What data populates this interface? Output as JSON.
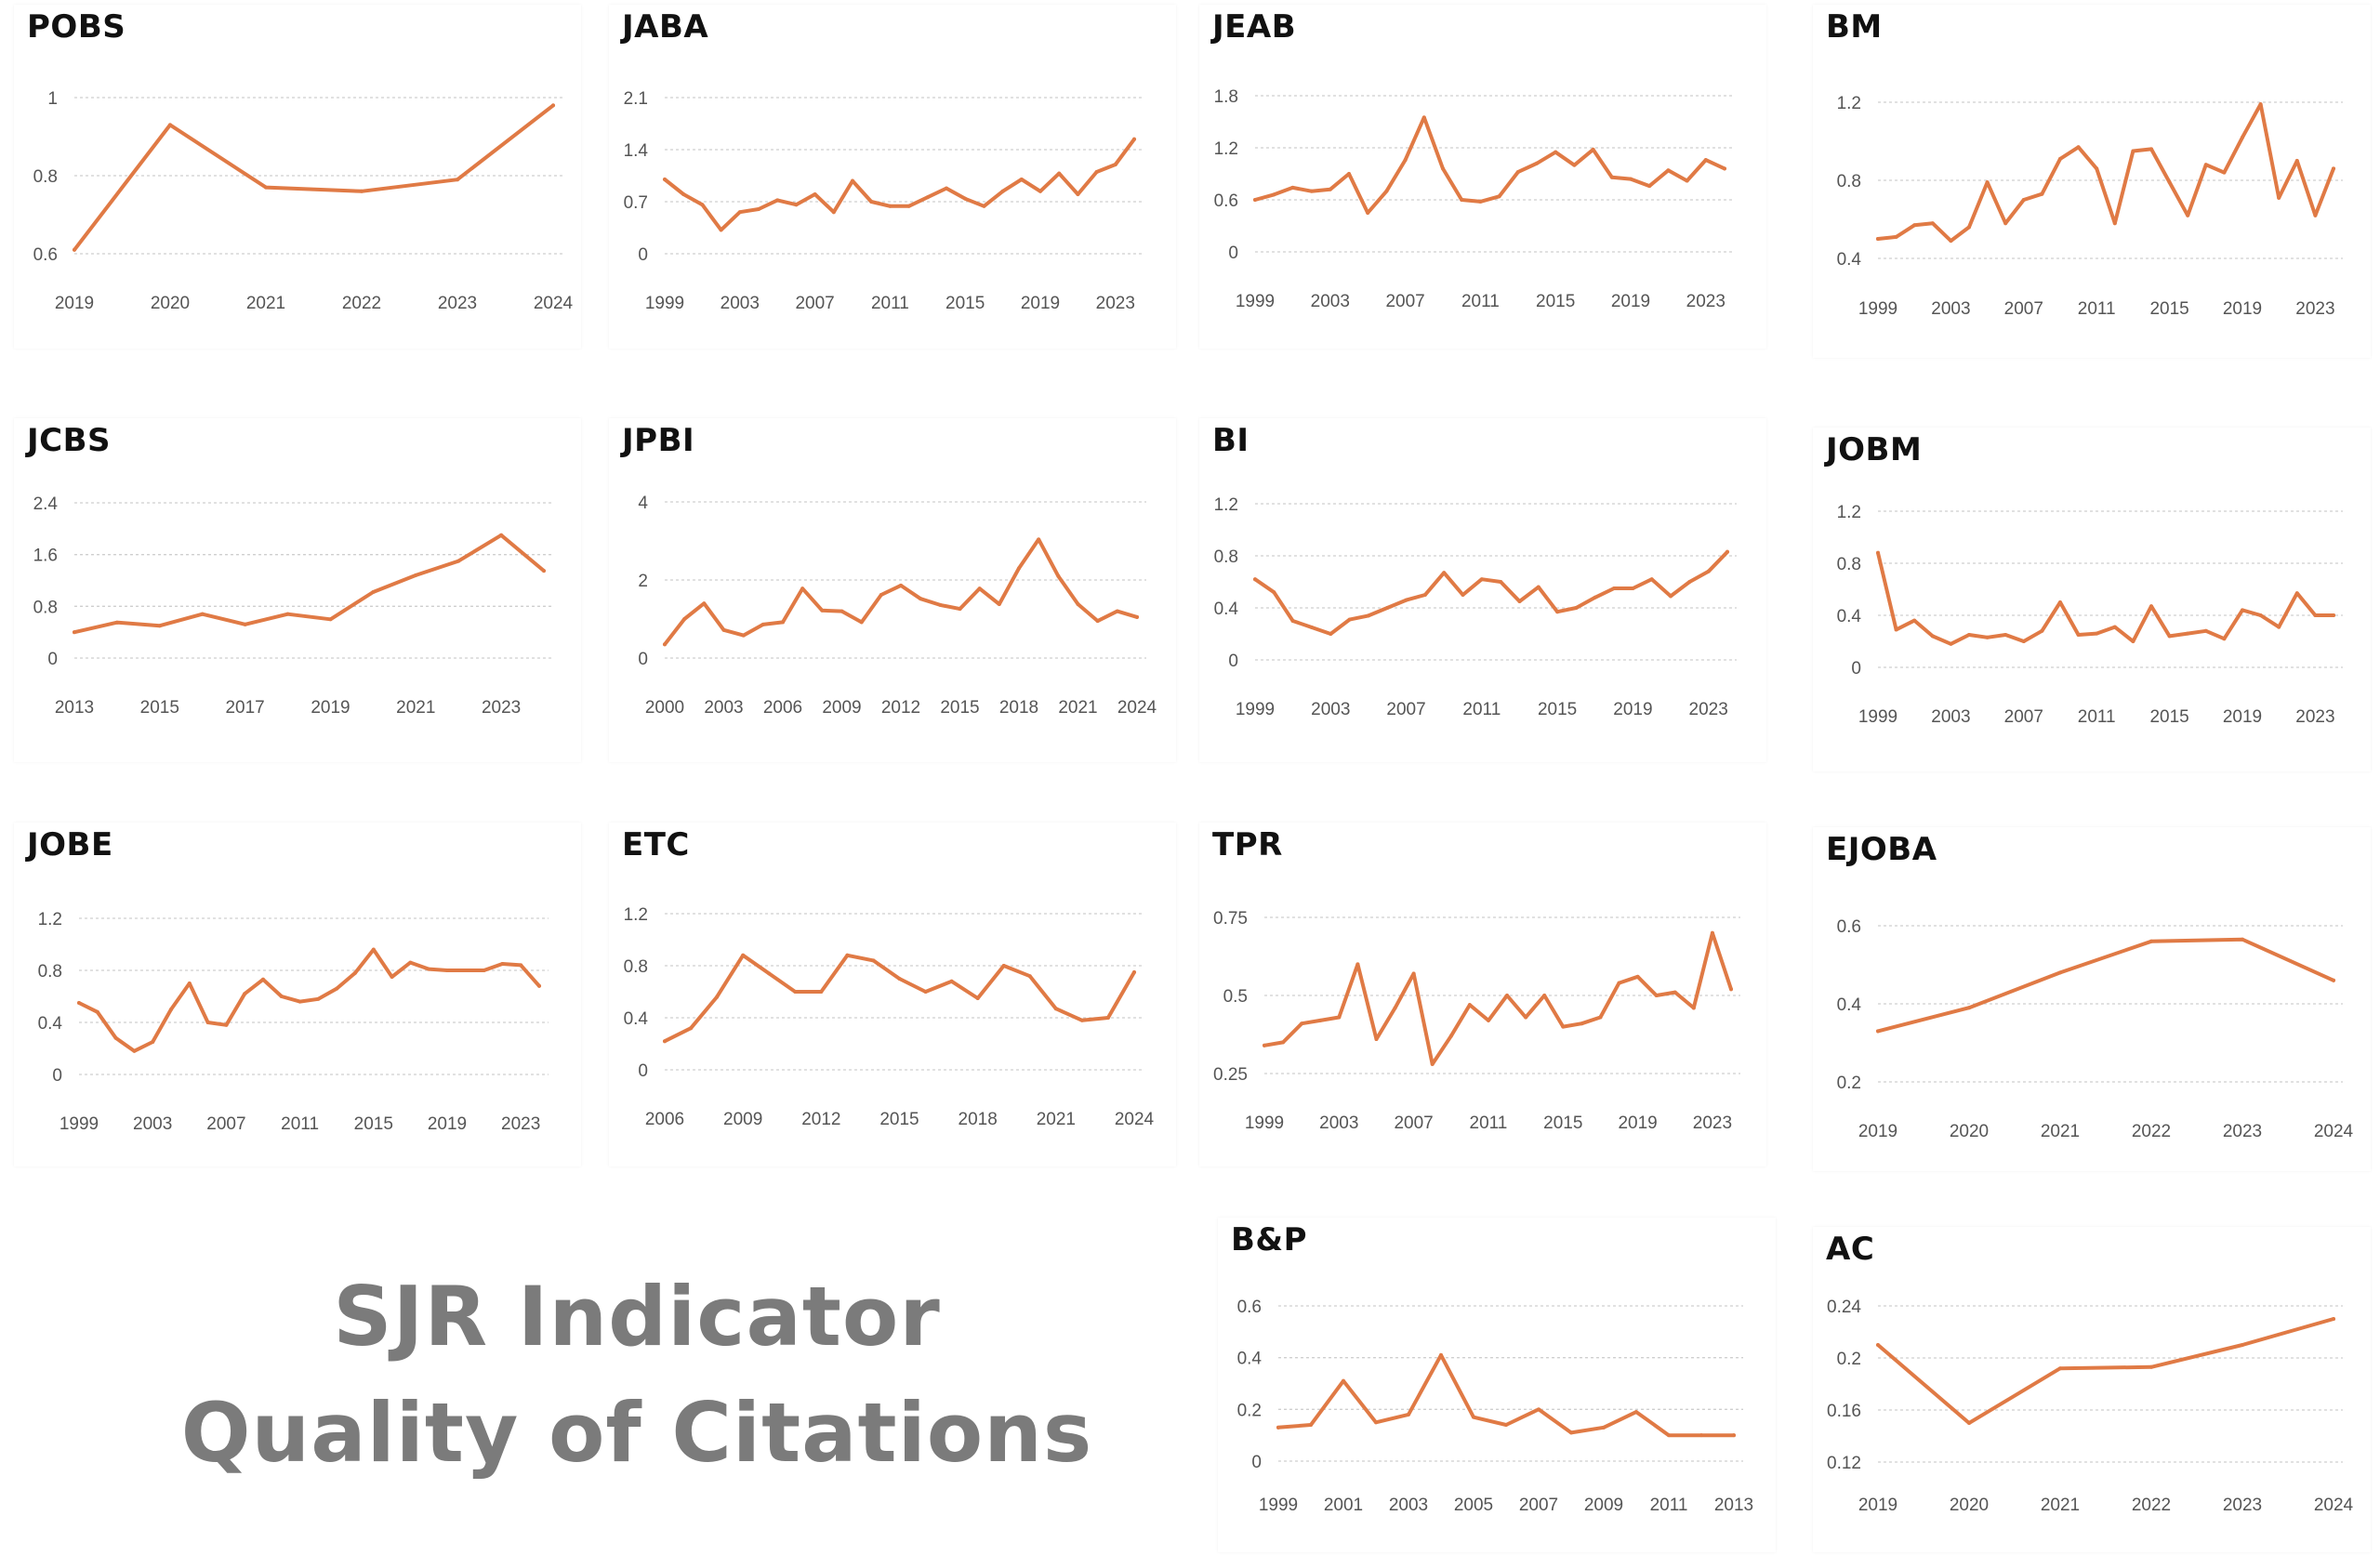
{
  "header": {
    "line1": "SJR Indicator",
    "line2": "Quality of Citations"
  },
  "style": {
    "line_color": "#e07a45",
    "title_color": "#7b7b7b"
  },
  "chart_data": [
    {
      "type": "line",
      "title": "POBS",
      "y_ticks": [
        "0.6",
        "0.8",
        "1"
      ],
      "ylim": [
        0.6,
        1.0
      ],
      "x_ticks": [
        "2019",
        "2020",
        "2021",
        "2022",
        "2023",
        "2024"
      ],
      "x": [
        2019,
        2020,
        2021,
        2022,
        2023,
        2024
      ],
      "values": [
        0.61,
        0.93,
        0.77,
        0.76,
        0.79,
        0.98
      ]
    },
    {
      "type": "line",
      "title": "JABA",
      "y_ticks": [
        "0",
        "0.7",
        "1.4",
        "2.1"
      ],
      "ylim": [
        0,
        2.1
      ],
      "x_ticks": [
        "1999",
        "2003",
        "2007",
        "2011",
        "2015",
        "2019",
        "2023"
      ],
      "x": [
        1999,
        2000,
        2001,
        2002,
        2003,
        2004,
        2005,
        2006,
        2007,
        2008,
        2009,
        2010,
        2011,
        2012,
        2013,
        2014,
        2015,
        2016,
        2017,
        2018,
        2019,
        2020,
        2021,
        2022,
        2023,
        2024
      ],
      "values": [
        1.0,
        0.8,
        0.66,
        0.32,
        0.56,
        0.6,
        0.72,
        0.66,
        0.8,
        0.56,
        0.98,
        0.7,
        0.64,
        0.64,
        0.76,
        0.88,
        0.74,
        0.64,
        0.84,
        1.0,
        0.84,
        1.08,
        0.8,
        1.1,
        1.2,
        1.54
      ]
    },
    {
      "type": "line",
      "title": "JEAB",
      "y_ticks": [
        "0",
        "0.6",
        "1.2",
        "1.8"
      ],
      "ylim": [
        0,
        1.8
      ],
      "x_ticks": [
        "1999",
        "2003",
        "2007",
        "2011",
        "2015",
        "2019",
        "2023"
      ],
      "x": [
        1999,
        2000,
        2001,
        2002,
        2003,
        2004,
        2005,
        2006,
        2007,
        2008,
        2009,
        2010,
        2011,
        2012,
        2013,
        2014,
        2015,
        2016,
        2017,
        2018,
        2019,
        2020,
        2021,
        2022,
        2023,
        2024
      ],
      "values": [
        0.6,
        0.66,
        0.74,
        0.7,
        0.72,
        0.9,
        0.45,
        0.7,
        1.06,
        1.55,
        0.96,
        0.6,
        0.58,
        0.64,
        0.92,
        1.02,
        1.15,
        1.0,
        1.18,
        0.86,
        0.84,
        0.76,
        0.94,
        0.82,
        1.06,
        0.96
      ]
    },
    {
      "type": "line",
      "title": "BM",
      "y_ticks": [
        "0.4",
        "0.8",
        "1.2"
      ],
      "ylim": [
        0.4,
        1.2
      ],
      "x_ticks": [
        "1999",
        "2003",
        "2007",
        "2011",
        "2015",
        "2019",
        "2023"
      ],
      "x": [
        1999,
        2000,
        2001,
        2002,
        2003,
        2004,
        2005,
        2006,
        2007,
        2008,
        2009,
        2010,
        2011,
        2012,
        2013,
        2014,
        2015,
        2016,
        2017,
        2018,
        2019,
        2020,
        2021,
        2022,
        2023,
        2024
      ],
      "values": [
        0.5,
        0.51,
        0.57,
        0.58,
        0.49,
        0.56,
        0.79,
        0.58,
        0.7,
        0.73,
        0.91,
        0.97,
        0.86,
        0.58,
        0.95,
        0.96,
        0.79,
        0.62,
        0.88,
        0.84,
        1.02,
        1.19,
        0.71,
        0.9,
        0.62,
        0.86
      ]
    },
    {
      "type": "line",
      "title": "JCBS",
      "y_ticks": [
        "0",
        "0.8",
        "1.6",
        "2.4"
      ],
      "ylim": [
        0,
        2.4
      ],
      "x_ticks": [
        "2013",
        "2015",
        "2017",
        "2019",
        "2021",
        "2023"
      ],
      "x": [
        2013,
        2014,
        2015,
        2016,
        2017,
        2018,
        2019,
        2020,
        2021,
        2022,
        2023,
        2024
      ],
      "values": [
        0.4,
        0.55,
        0.5,
        0.68,
        0.52,
        0.68,
        0.6,
        1.02,
        1.28,
        1.5,
        1.9,
        1.35
      ]
    },
    {
      "type": "line",
      "title": "JPBI",
      "y_ticks": [
        "0",
        "2",
        "4"
      ],
      "ylim": [
        0,
        4
      ],
      "x_ticks": [
        "2000",
        "2003",
        "2006",
        "2009",
        "2012",
        "2015",
        "2018",
        "2021",
        "2024"
      ],
      "x": [
        2000,
        2001,
        2002,
        2003,
        2004,
        2005,
        2006,
        2007,
        2008,
        2009,
        2010,
        2011,
        2012,
        2013,
        2014,
        2015,
        2016,
        2017,
        2018,
        2019,
        2020,
        2021,
        2022,
        2023,
        2024
      ],
      "values": [
        0.35,
        1.0,
        1.4,
        0.72,
        0.58,
        0.86,
        0.92,
        1.78,
        1.22,
        1.2,
        0.92,
        1.62,
        1.86,
        1.52,
        1.36,
        1.26,
        1.78,
        1.38,
        2.3,
        3.04,
        2.1,
        1.38,
        0.95,
        1.2,
        1.05
      ]
    },
    {
      "type": "line",
      "title": "BI",
      "y_ticks": [
        "0",
        "0.4",
        "0.8",
        "1.2"
      ],
      "ylim": [
        0,
        1.2
      ],
      "x_ticks": [
        "1999",
        "2003",
        "2007",
        "2011",
        "2015",
        "2019",
        "2023"
      ],
      "x": [
        1999,
        2000,
        2001,
        2002,
        2003,
        2004,
        2005,
        2006,
        2007,
        2008,
        2009,
        2010,
        2011,
        2012,
        2013,
        2014,
        2015,
        2016,
        2017,
        2018,
        2019,
        2020,
        2021,
        2022,
        2023,
        2024
      ],
      "values": [
        0.62,
        0.52,
        0.3,
        0.25,
        0.2,
        0.31,
        0.34,
        0.4,
        0.46,
        0.5,
        0.67,
        0.5,
        0.62,
        0.6,
        0.45,
        0.56,
        0.37,
        0.4,
        0.48,
        0.55,
        0.55,
        0.62,
        0.49,
        0.6,
        0.68,
        0.83
      ]
    },
    {
      "type": "line",
      "title": "JOBM",
      "y_ticks": [
        "0",
        "0.4",
        "0.8",
        "1.2"
      ],
      "ylim": [
        0,
        1.2
      ],
      "x_ticks": [
        "1999",
        "2003",
        "2007",
        "2011",
        "2015",
        "2019",
        "2023"
      ],
      "x": [
        1999,
        2000,
        2001,
        2002,
        2003,
        2004,
        2005,
        2006,
        2007,
        2008,
        2009,
        2010,
        2011,
        2012,
        2013,
        2014,
        2015,
        2016,
        2017,
        2018,
        2019,
        2020,
        2021,
        2022,
        2023,
        2024
      ],
      "values": [
        0.88,
        0.29,
        0.36,
        0.24,
        0.18,
        0.25,
        0.23,
        0.25,
        0.2,
        0.28,
        0.5,
        0.25,
        0.26,
        0.31,
        0.2,
        0.47,
        0.24,
        0.26,
        0.28,
        0.22,
        0.44,
        0.4,
        0.31,
        0.57,
        0.4,
        0.4
      ]
    },
    {
      "type": "line",
      "title": "JOBE",
      "y_ticks": [
        "0",
        "0.4",
        "0.8",
        "1.2"
      ],
      "ylim": [
        0,
        1.2
      ],
      "x_ticks": [
        "1999",
        "2003",
        "2007",
        "2011",
        "2015",
        "2019",
        "2023"
      ],
      "x": [
        1999,
        2000,
        2001,
        2002,
        2003,
        2004,
        2005,
        2006,
        2007,
        2008,
        2009,
        2010,
        2011,
        2012,
        2013,
        2014,
        2015,
        2016,
        2017,
        2018,
        2019,
        2020,
        2021,
        2022,
        2023,
        2024
      ],
      "values": [
        0.55,
        0.48,
        0.28,
        0.18,
        0.25,
        0.5,
        0.7,
        0.4,
        0.38,
        0.62,
        0.73,
        0.6,
        0.56,
        0.58,
        0.66,
        0.78,
        0.96,
        0.75,
        0.86,
        0.81,
        0.8,
        0.8,
        0.8,
        0.85,
        0.84,
        0.68
      ]
    },
    {
      "type": "line",
      "title": "ETC",
      "y_ticks": [
        "0",
        "0.4",
        "0.8",
        "1.2"
      ],
      "ylim": [
        0,
        1.2
      ],
      "x_ticks": [
        "2006",
        "2009",
        "2012",
        "2015",
        "2018",
        "2021",
        "2024"
      ],
      "x": [
        2006,
        2007,
        2008,
        2009,
        2010,
        2011,
        2012,
        2013,
        2014,
        2015,
        2016,
        2017,
        2018,
        2019,
        2020,
        2021,
        2022,
        2023,
        2024
      ],
      "values": [
        0.22,
        0.32,
        0.56,
        0.88,
        0.74,
        0.6,
        0.6,
        0.88,
        0.84,
        0.7,
        0.6,
        0.68,
        0.55,
        0.8,
        0.72,
        0.47,
        0.38,
        0.4,
        0.75
      ]
    },
    {
      "type": "line",
      "title": "TPR",
      "y_ticks": [
        "0.25",
        "0.5",
        "0.75"
      ],
      "ylim": [
        0.25,
        0.75
      ],
      "x_ticks": [
        "1999",
        "2003",
        "2007",
        "2011",
        "2015",
        "2019",
        "2023"
      ],
      "x": [
        1999,
        2000,
        2001,
        2002,
        2003,
        2004,
        2005,
        2006,
        2007,
        2008,
        2009,
        2010,
        2011,
        2012,
        2013,
        2014,
        2015,
        2016,
        2017,
        2018,
        2019,
        2020,
        2021,
        2022,
        2023,
        2024
      ],
      "values": [
        0.34,
        0.35,
        0.41,
        0.42,
        0.43,
        0.6,
        0.36,
        0.46,
        0.57,
        0.28,
        0.37,
        0.47,
        0.42,
        0.5,
        0.43,
        0.5,
        0.4,
        0.41,
        0.43,
        0.54,
        0.56,
        0.5,
        0.51,
        0.46,
        0.7,
        0.52
      ]
    },
    {
      "type": "line",
      "title": "EJOBA",
      "y_ticks": [
        "0.2",
        "0.4",
        "0.6"
      ],
      "ylim": [
        0.2,
        0.6
      ],
      "x_ticks": [
        "2019",
        "2020",
        "2021",
        "2022",
        "2023",
        "2024"
      ],
      "x": [
        2019,
        2020,
        2021,
        2022,
        2023,
        2024
      ],
      "values": [
        0.33,
        0.39,
        0.48,
        0.56,
        0.565,
        0.46
      ]
    },
    {
      "type": "line",
      "title": "B&P",
      "y_ticks": [
        "0",
        "0.2",
        "0.4",
        "0.6"
      ],
      "ylim": [
        0,
        0.6
      ],
      "x_ticks": [
        "1999",
        "2001",
        "2003",
        "2005",
        "2007",
        "2009",
        "2011",
        "2013"
      ],
      "x": [
        1999,
        2000,
        2001,
        2002,
        2003,
        2004,
        2005,
        2006,
        2007,
        2008,
        2009,
        2010,
        2011,
        2012,
        2013
      ],
      "values": [
        0.13,
        0.14,
        0.31,
        0.15,
        0.18,
        0.41,
        0.17,
        0.14,
        0.2,
        0.11,
        0.13,
        0.19,
        0.1,
        0.1,
        0.1
      ]
    },
    {
      "type": "line",
      "title": "AC",
      "y_ticks": [
        "0.12",
        "0.16",
        "0.2",
        "0.24"
      ],
      "ylim": [
        0.12,
        0.24
      ],
      "x_ticks": [
        "2019",
        "2020",
        "2021",
        "2022",
        "2023",
        "2024"
      ],
      "x": [
        2019,
        2020,
        2021,
        2022,
        2023,
        2024
      ],
      "values": [
        0.21,
        0.15,
        0.192,
        0.193,
        0.21,
        0.23
      ]
    }
  ]
}
